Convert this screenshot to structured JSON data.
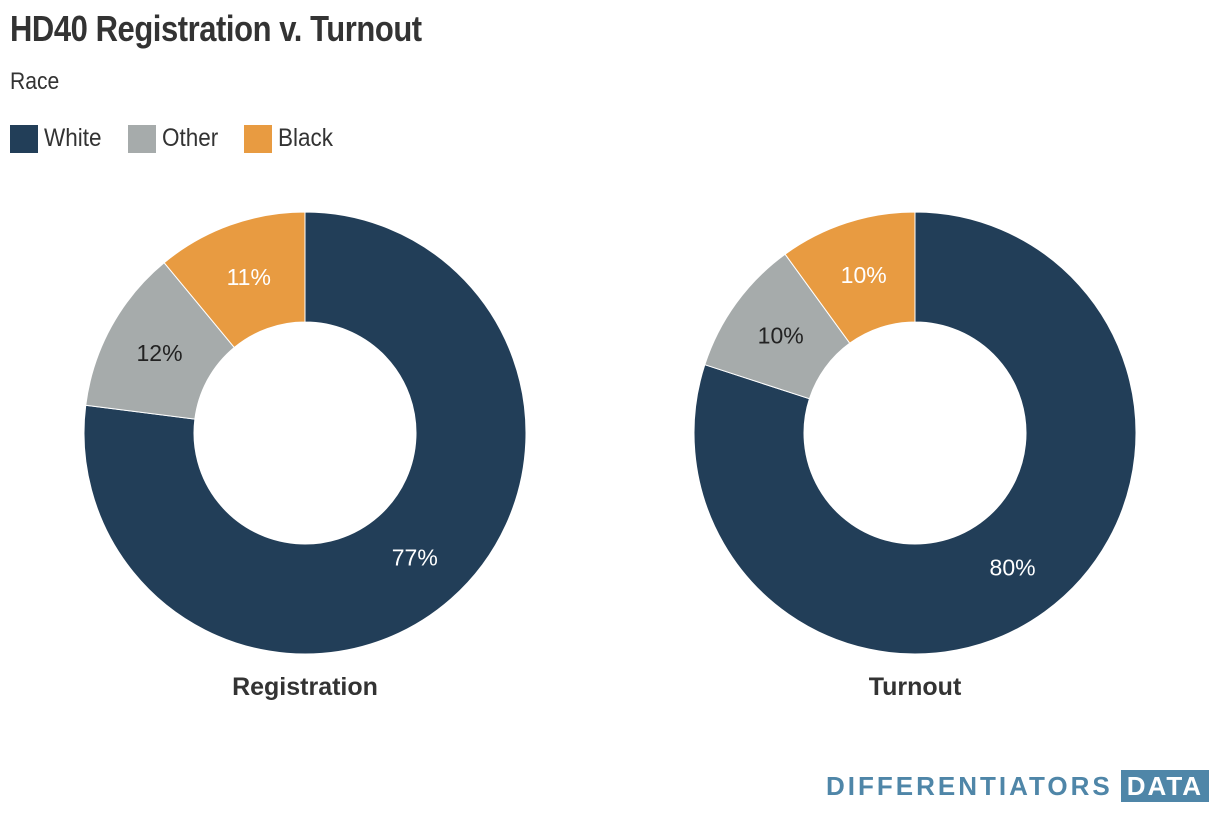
{
  "title": "HD40 Registration v. Turnout",
  "subtitle": "Race",
  "legend": [
    {
      "label": "White",
      "color": "#223e58"
    },
    {
      "label": "Other",
      "color": "#a6abab"
    },
    {
      "label": "Black",
      "color": "#e89b41"
    }
  ],
  "logo": {
    "word": "DIFFERENTIATORS",
    "box": "DATA"
  },
  "chart_data": [
    {
      "type": "pie",
      "donut": true,
      "title": "Registration",
      "categories": [
        "White",
        "Other",
        "Black"
      ],
      "values": [
        77,
        12,
        11
      ],
      "labels": [
        "77%",
        "12%",
        "11%"
      ],
      "colors": [
        "#223e58",
        "#a6abab",
        "#e89b41"
      ],
      "label_colors": [
        "#ffffff",
        "#222222",
        "#ffffff"
      ]
    },
    {
      "type": "pie",
      "donut": true,
      "title": "Turnout",
      "categories": [
        "White",
        "Other",
        "Black"
      ],
      "values": [
        80,
        10,
        10
      ],
      "labels": [
        "80%",
        "10%",
        "10%"
      ],
      "colors": [
        "#223e58",
        "#a6abab",
        "#e89b41"
      ],
      "label_colors": [
        "#ffffff",
        "#222222",
        "#ffffff"
      ]
    }
  ]
}
